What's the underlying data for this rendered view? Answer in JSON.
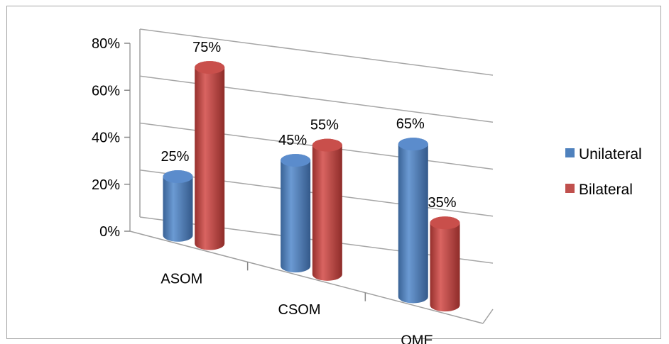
{
  "chart_data": {
    "type": "bar",
    "categories": [
      "ASOM",
      "CSOM",
      "OME"
    ],
    "series": [
      {
        "name": "Unilateral",
        "values": [
          25,
          45,
          65
        ],
        "labels": [
          "25%",
          "45%",
          "65%"
        ],
        "color": "#4f81bd"
      },
      {
        "name": "Bilateral",
        "values": [
          75,
          55,
          35
        ],
        "labels": [
          "75%",
          "55%",
          "35%"
        ],
        "color": "#c0504d"
      }
    ],
    "ylim": [
      0,
      80
    ],
    "yticks": [
      "0%",
      "20%",
      "40%",
      "60%",
      "80%"
    ],
    "grid": true,
    "legend": "right",
    "style": "3d-cylinder"
  }
}
